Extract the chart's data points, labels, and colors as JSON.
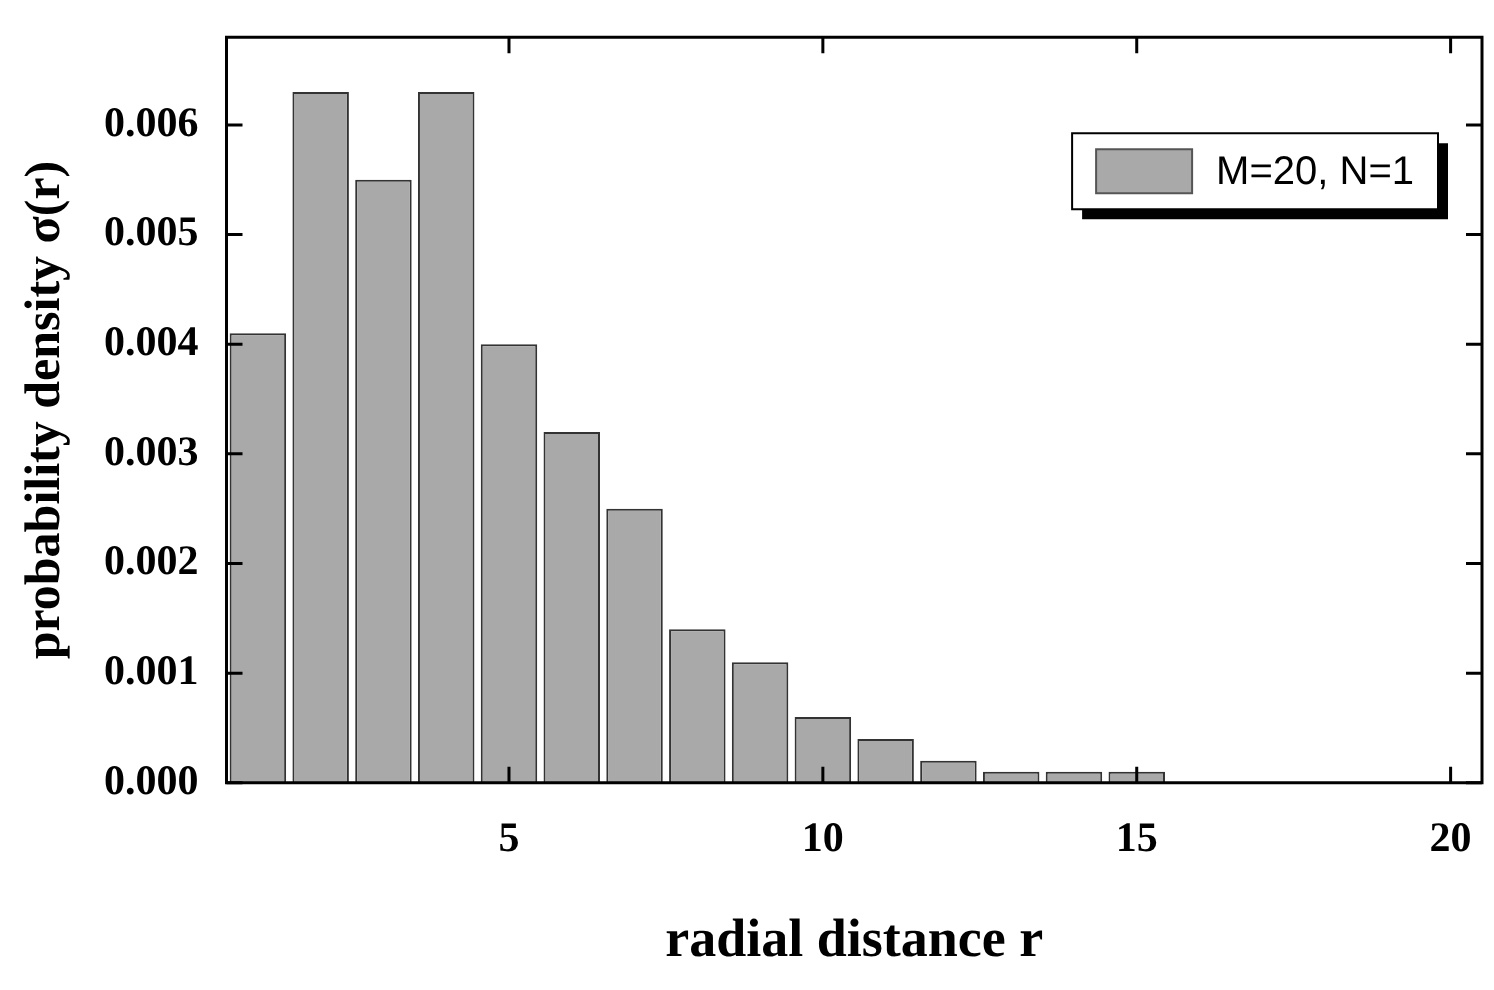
{
  "chart_data": {
    "type": "histogram",
    "xlabel": "radial distance r",
    "ylabel": "probability density σ(r)",
    "bins": [
      0.5,
      1.5,
      2.5,
      3.5,
      4.5,
      5.5,
      6.5,
      7.5,
      8.5,
      9.5,
      10.5,
      11.5,
      12.5,
      13.5,
      14.5,
      15.5,
      16.5,
      17.5,
      18.5,
      19.5,
      20.5
    ],
    "series": [
      {
        "name": "M=20, N=1",
        "color": "#a9a9a9",
        "values": [
          0.0041,
          0.0063,
          0.0055,
          0.0063,
          0.004,
          0.0032,
          0.0025,
          0.0014,
          0.0011,
          0.0006,
          0.0004,
          0.0002,
          0.0001,
          0.0001,
          0.0001,
          0,
          0,
          0,
          0,
          0
        ]
      }
    ],
    "xlim": [
      0.5,
      20.5
    ],
    "xticks": [
      5,
      10,
      15,
      20
    ],
    "ylim": [
      0,
      0.0068
    ],
    "yticks": [
      {
        "value": 0,
        "label": "0.000"
      },
      0.001,
      0.002,
      0.003,
      0.004,
      0.005,
      0.006
    ],
    "legend": "top right"
  }
}
